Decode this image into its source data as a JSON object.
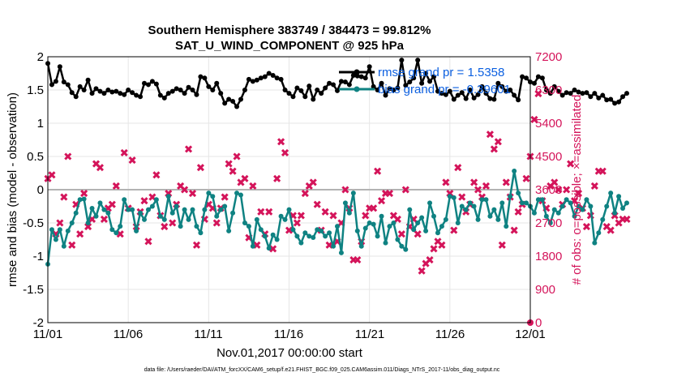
{
  "chart_data": {
    "type": "line",
    "title": "Southern Hemisphere 383749 / 384473 = 99.812%",
    "subtitle": "SAT_U_WIND_COMPONENT @ 925 hPa",
    "xlabel": "Nov.01,2017 00:00:00 start",
    "ylabel": "rmse and bias (model - observation)",
    "y2label": "# of obs: o=possible; ×=assimilated",
    "footnote": "data file: /Users/raeder/DAI/ATM_forcXX/CAM6_setup/f.e21.FHIST_BGC.f09_025.CAM6assim.011/Diags_NTrS_2017-11/obs_diag_output.nc",
    "x_ticks": [
      "11/01",
      "11/06",
      "11/11",
      "11/16",
      "11/21",
      "11/26",
      "12/01"
    ],
    "x_range_days": [
      0,
      30
    ],
    "ylim": [
      -2,
      2
    ],
    "y_ticks": [
      "2",
      "1.5",
      "1",
      "0.5",
      "0",
      "-0.5",
      "-1",
      "-1.5",
      "-2"
    ],
    "y2lim": [
      0,
      7200
    ],
    "y2_ticks": [
      "7200",
      "6300",
      "5400",
      "4500",
      "3600",
      "2700",
      "1800",
      "900",
      "0"
    ],
    "legend": {
      "position": "top-right",
      "rmse_label": "rmse grand pr = 1.5358",
      "bias_label": "bias grand pr = -0.39601"
    },
    "colors": {
      "rmse": "#000000",
      "bias": "#0f8282",
      "obs": "#d4145a",
      "zero": "#b3b3b3",
      "grid": "#e6e6e6"
    },
    "series": [
      {
        "name": "rmse",
        "step_days": 0.25,
        "values": [
          1.9,
          1.58,
          1.63,
          1.85,
          1.62,
          1.58,
          1.46,
          1.4,
          1.55,
          1.5,
          1.65,
          1.45,
          1.52,
          1.48,
          1.45,
          1.5,
          1.47,
          1.48,
          1.45,
          1.43,
          1.5,
          1.46,
          1.42,
          1.4,
          1.6,
          1.58,
          1.63,
          1.59,
          1.42,
          1.38,
          1.45,
          1.48,
          1.52,
          1.5,
          1.45,
          1.54,
          1.5,
          1.43,
          1.7,
          1.68,
          1.55,
          1.5,
          1.6,
          1.45,
          1.3,
          1.36,
          1.33,
          1.25,
          1.36,
          1.5,
          1.66,
          1.63,
          1.65,
          1.68,
          1.7,
          1.75,
          1.72,
          1.68,
          1.66,
          1.5,
          1.45,
          1.4,
          1.53,
          1.49,
          1.4,
          1.56,
          1.36,
          1.5,
          1.45,
          1.53,
          1.6,
          1.58,
          1.49,
          1.63,
          1.62,
          1.58,
          1.72,
          1.71,
          1.7,
          1.68,
          1.85,
          1.55,
          1.5,
          1.6,
          1.42,
          1.52,
          1.5,
          1.53,
          1.95,
          1.57,
          1.62,
          1.68,
          1.95,
          1.6,
          1.75,
          1.63,
          1.7,
          1.48,
          1.45,
          1.43,
          1.48,
          1.36,
          1.42,
          1.46,
          1.37,
          1.5,
          1.38,
          1.43,
          1.55,
          1.45,
          1.37,
          1.36,
          1.6,
          1.55,
          1.48,
          1.5,
          1.42,
          1.35,
          1.7,
          1.68,
          1.62,
          1.6,
          1.7,
          1.68,
          1.5,
          1.45,
          1.55,
          1.48,
          1.42,
          1.46,
          1.45,
          1.5,
          1.47,
          1.45,
          1.46,
          1.4,
          1.45,
          1.38,
          1.42,
          1.35,
          1.36,
          1.3,
          1.32,
          1.4,
          1.45
        ]
      },
      {
        "name": "bias",
        "step_days": 0.25,
        "values": [
          -1.12,
          -0.6,
          -0.75,
          -0.6,
          -0.85,
          -0.62,
          -0.5,
          -0.35,
          -0.15,
          -0.14,
          -0.5,
          -0.28,
          -0.4,
          -0.2,
          -0.3,
          -0.35,
          -0.6,
          -0.65,
          -0.55,
          -0.15,
          -0.3,
          -0.3,
          -0.62,
          -0.35,
          -0.45,
          -0.3,
          -0.25,
          -0.15,
          -0.4,
          -0.45,
          -0.1,
          -0.35,
          -0.25,
          -0.55,
          -0.3,
          -0.45,
          -0.3,
          -0.55,
          -0.65,
          -0.3,
          -0.05,
          -0.1,
          -0.4,
          -0.3,
          -0.25,
          -0.62,
          -0.35,
          -0.05,
          -0.08,
          -0.5,
          -0.55,
          -0.85,
          -0.45,
          -0.6,
          -0.7,
          -0.88,
          -0.68,
          -0.75,
          -0.4,
          -0.45,
          -0.3,
          -0.6,
          -0.7,
          -0.8,
          -0.65,
          -0.7,
          -0.72,
          -0.6,
          -0.62,
          -0.7,
          -0.65,
          -0.85,
          -0.55,
          -0.95,
          -0.2,
          -0.35,
          -0.05,
          -0.62,
          -0.85,
          -0.58,
          -0.5,
          -0.52,
          -0.7,
          -0.4,
          -0.8,
          -0.55,
          -0.5,
          -0.75,
          -0.85,
          -0.9,
          -0.3,
          -0.6,
          -0.5,
          -0.42,
          -0.62,
          -0.2,
          -0.4,
          -0.65,
          -0.55,
          -0.45,
          -0.1,
          -0.12,
          -0.5,
          -0.25,
          -0.3,
          -0.2,
          -0.25,
          -0.45,
          -0.15,
          -0.15,
          -0.4,
          -0.3,
          -0.45,
          -0.2,
          -0.55,
          -0.1,
          0.28,
          -0.05,
          -0.2,
          -0.2,
          -0.25,
          -0.35,
          -0.15,
          -0.15,
          -0.4,
          -0.5,
          -0.3,
          -0.35,
          -0.25,
          -0.15,
          -0.2,
          -0.4,
          -0.25,
          -0.3,
          -0.15,
          -0.25,
          -0.8,
          -0.65,
          -0.45,
          -0.25,
          -0.05,
          -0.35,
          -0.1,
          -0.28,
          -0.2
        ]
      },
      {
        "name": "obs_assimilated",
        "step_days": 0.25,
        "values": [
          3900,
          4000,
          2400,
          2700,
          3400,
          4500,
          2100,
          3200,
          2400,
          3500,
          2600,
          2800,
          4300,
          4200,
          2800,
          3100,
          3200,
          3700,
          2400,
          4600,
          3100,
          4400,
          2600,
          3000,
          3300,
          2200,
          3400,
          4000,
          2900,
          2600,
          3500,
          2700,
          3200,
          3700,
          3600,
          4700,
          3500,
          2100,
          4200,
          2800,
          3200,
          3100,
          2700,
          3100,
          3400,
          4300,
          4100,
          4500,
          3800,
          3900,
          2300,
          3700,
          2100,
          3000,
          2400,
          3000,
          2000,
          3900,
          4900,
          4600,
          2500,
          2900,
          2700,
          2900,
          3500,
          3700,
          3800,
          3200,
          2500,
          3000,
          2100,
          2900,
          2200,
          2700,
          3600,
          3100,
          1700,
          1700,
          2200,
          2900,
          3100,
          3100,
          4100,
          3300,
          3500,
          3500,
          2900,
          2800,
          2400,
          3600,
          2600,
          2800,
          2400,
          1400,
          1600,
          1700,
          2000,
          2200,
          2100,
          3800,
          3500,
          2500,
          4200,
          3400,
          3000,
          3200,
          3800,
          3600,
          3400,
          3700,
          5100,
          4700,
          4900,
          2100,
          3800,
          3400,
          2500,
          3000,
          3200,
          3900,
          4500,
          5500,
          6200,
          3300,
          3100,
          3700,
          3800,
          3600,
          3200,
          3600,
          4300,
          3300,
          3500,
          3100,
          2600,
          2900,
          3700,
          4100,
          4100,
          2600,
          2500,
          2900,
          2700,
          2800,
          2800
        ]
      }
    ]
  }
}
